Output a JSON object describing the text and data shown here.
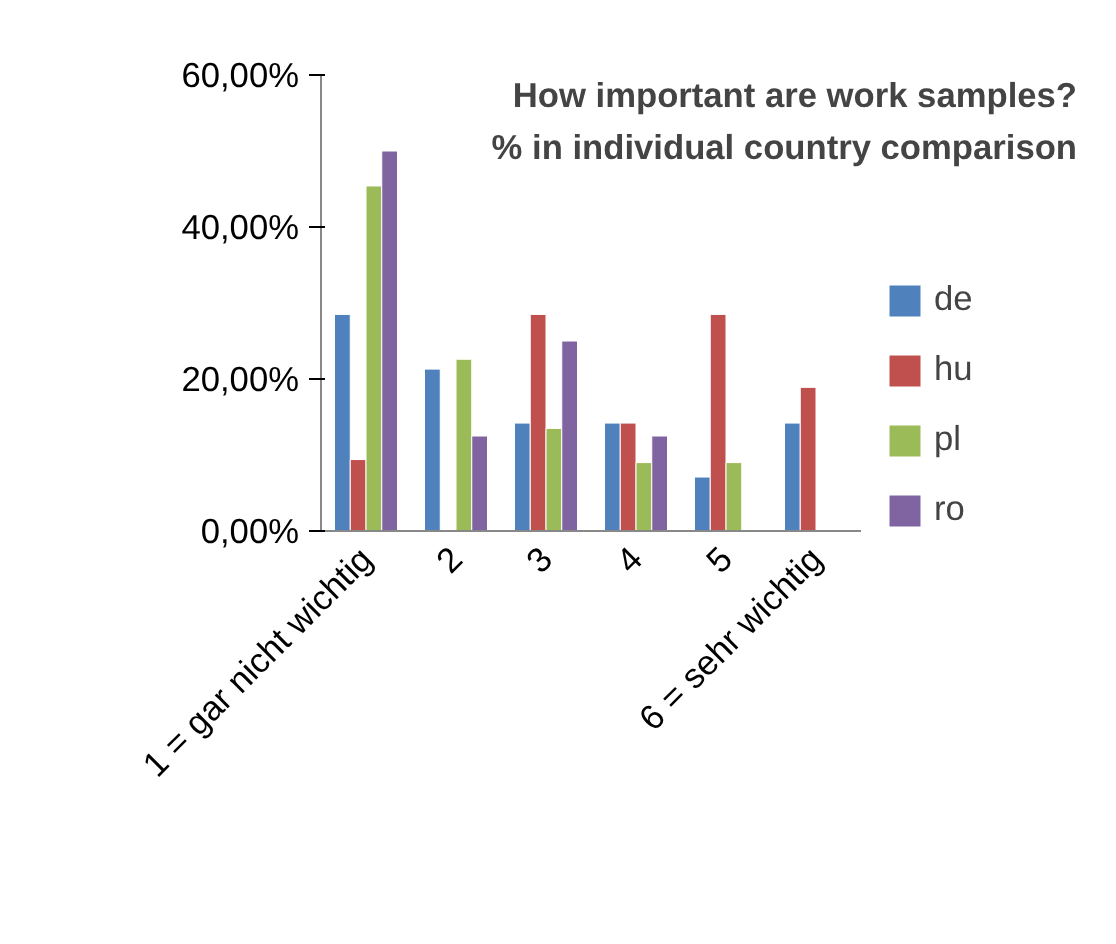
{
  "chart_data": {
    "type": "bar",
    "title": "How important are work samples?",
    "subtitle": "% in individual country comparison",
    "categories": [
      "1 = gar nicht wichtig",
      "2",
      "3",
      "4",
      "5",
      "6 = sehr wichtig"
    ],
    "series": [
      {
        "name": "de",
        "color": "#4f81bd",
        "values": [
          28.5,
          21.3,
          14.2,
          14.2,
          7.1,
          14.2
        ]
      },
      {
        "name": "hu",
        "color": "#c0504d",
        "values": [
          9.4,
          null,
          28.5,
          14.2,
          28.5,
          18.9
        ]
      },
      {
        "name": "pl",
        "color": "#9bbb59",
        "values": [
          45.4,
          22.6,
          13.5,
          9.0,
          9.0,
          null
        ]
      },
      {
        "name": "ro",
        "color": "#8064a2",
        "values": [
          50.0,
          12.5,
          25.0,
          12.5,
          null,
          null
        ]
      }
    ],
    "ylim": [
      0,
      60
    ],
    "yticks": [
      {
        "value": 0,
        "label": "0,00%"
      },
      {
        "value": 20,
        "label": "20,00%"
      },
      {
        "value": 40,
        "label": "40,00%"
      },
      {
        "value": 60,
        "label": "60,00%"
      }
    ],
    "grid": false,
    "legend": "right"
  }
}
